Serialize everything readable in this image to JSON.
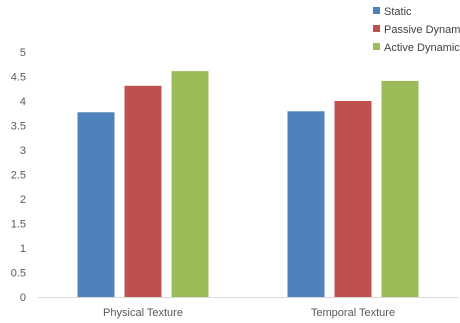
{
  "chart_data": {
    "type": "bar",
    "title": "",
    "xlabel": "",
    "ylabel": "",
    "categories": [
      "Physical Texture",
      "Temporal Texture"
    ],
    "series": [
      {
        "name": "Static",
        "color": "#4F81BD",
        "values": [
          3.77,
          3.79
        ]
      },
      {
        "name": "Passive Dynami",
        "color": "#C0504D",
        "values": [
          4.31,
          4.0
        ]
      },
      {
        "name": "Active Dynamic",
        "color": "#9BBB59",
        "values": [
          4.61,
          4.41
        ]
      }
    ],
    "ylim": [
      0,
      5
    ],
    "yticks": [
      "0",
      "0.5",
      "1",
      "1.5",
      "2",
      "2.5",
      "3",
      "3.5",
      "4",
      "4.5",
      "5"
    ],
    "grid": false,
    "legend_position": "top-right"
  }
}
